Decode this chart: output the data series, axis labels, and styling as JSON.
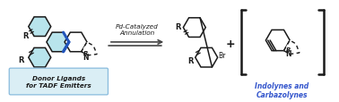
{
  "bg_color": "#ffffff",
  "light_blue_fill": "#b8e4ec",
  "blue_bond_color": "#2255bb",
  "black": "#1a1a1a",
  "arrow_color": "#444444",
  "italic_blue": "#3355cc",
  "box_fill": "#daeef5",
  "box_border": "#88bbdd",
  "text_pd": "Pd-Catalyzed\nAnnulation",
  "text_donor": "Donor Ligands\nfor TADF Emitters",
  "text_indolynes": "Indolynes and\nCarbazolynes",
  "figsize": [
    3.78,
    1.15
  ],
  "dpi": 100
}
